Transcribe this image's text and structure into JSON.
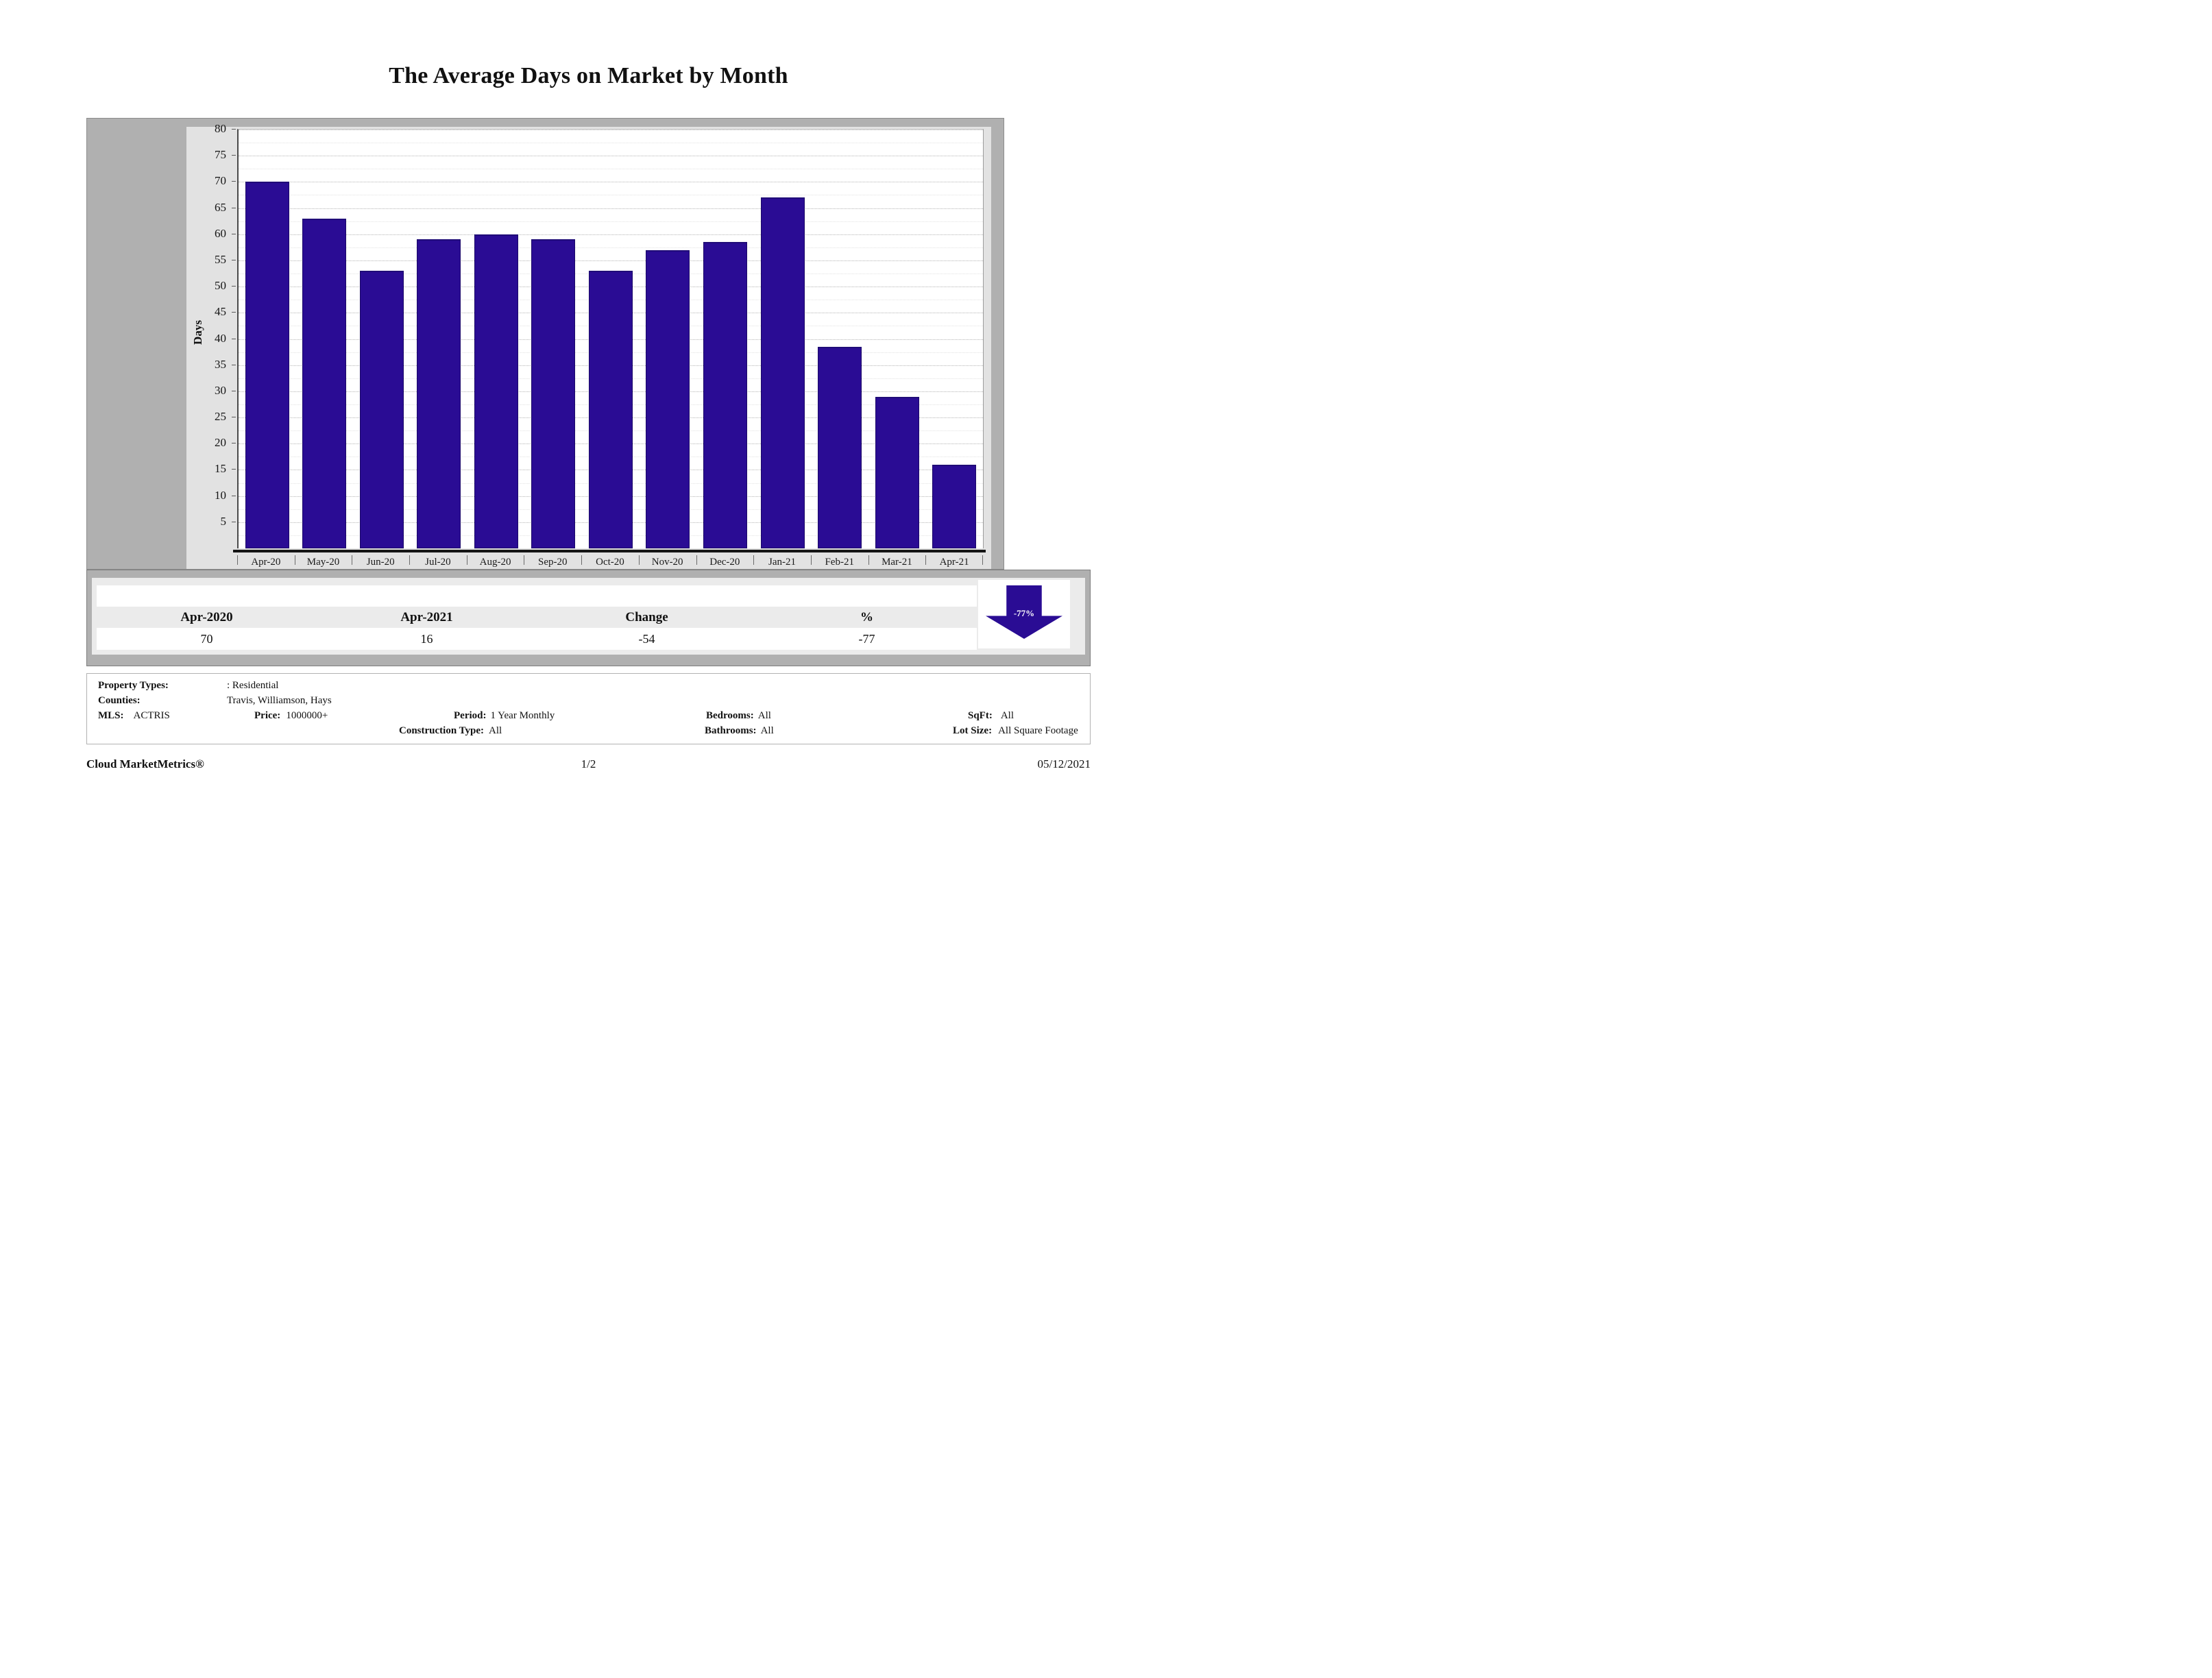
{
  "chart_data": {
    "type": "bar",
    "title": "The Average Days on Market by Month",
    "ylabel": "Days",
    "xlabel": "",
    "categories": [
      "Apr-20",
      "May-20",
      "Jun-20",
      "Jul-20",
      "Aug-20",
      "Sep-20",
      "Oct-20",
      "Nov-20",
      "Dec-20",
      "Jan-21",
      "Feb-21",
      "Mar-21",
      "Apr-21"
    ],
    "values": [
      70,
      63,
      53,
      59,
      60,
      59,
      53,
      57,
      58.5,
      67,
      38.5,
      29,
      16
    ],
    "yticks": [
      5,
      10,
      15,
      20,
      25,
      30,
      35,
      40,
      45,
      50,
      55,
      60,
      65,
      70,
      75,
      80
    ],
    "ylim": [
      0,
      80
    ],
    "grid": true,
    "legend_position": "none",
    "bar_color": "#2a0c94"
  },
  "summary_table": {
    "columns": [
      "Apr-2020",
      "Apr-2021",
      "Change",
      "%"
    ],
    "values": [
      "70",
      "16",
      "-54",
      "-77"
    ]
  },
  "change_badge": {
    "label": "-77%",
    "direction": "down",
    "color": "#2a0c94"
  },
  "filters": {
    "property_types": {
      "label": "Property Types:",
      "value": ": Residential"
    },
    "counties": {
      "label": "Counties:",
      "value": "Travis, Williamson, Hays"
    },
    "mls": {
      "label": "MLS:",
      "value": "ACTRIS"
    },
    "price": {
      "label": "Price:",
      "value": "1000000+"
    },
    "period": {
      "label": "Period:",
      "value": "1 Year Monthly"
    },
    "construction_type": {
      "label": "Construction Type:",
      "value": "All"
    },
    "bedrooms": {
      "label": "Bedrooms:",
      "value": "All"
    },
    "bathrooms": {
      "label": "Bathrooms:",
      "value": "All"
    },
    "sqft": {
      "label": "SqFt:",
      "value": "All"
    },
    "lot_size": {
      "label": "Lot Size:",
      "value": "All Square Footage"
    }
  },
  "footer": {
    "brand": "Cloud MarketMetrics®",
    "page": "1/2",
    "date": "05/12/2021"
  }
}
